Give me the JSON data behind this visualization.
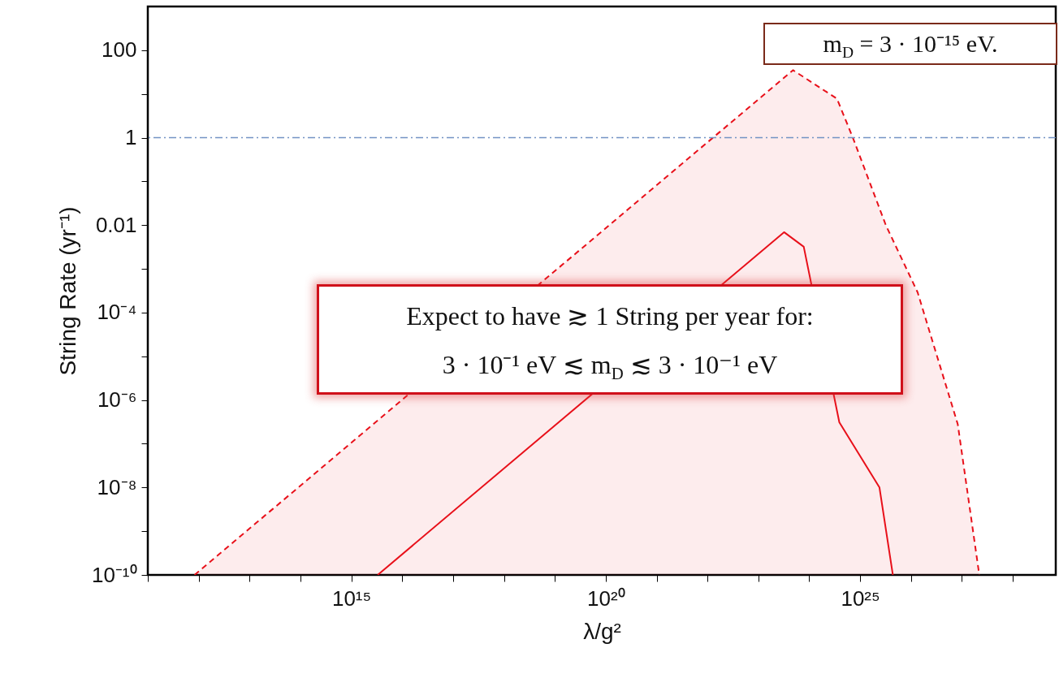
{
  "chart_data": {
    "type": "line",
    "xlabel": "λ/g²",
    "ylabel": "String Rate (yr⁻¹)",
    "log": "xy",
    "grid": false,
    "marker": "none",
    "xlim": [
      100000000000.0,
      7e+28
    ],
    "ylim": [
      1e-10,
      1000
    ],
    "xticks": [
      {
        "value": 100000000000.0,
        "label": null
      },
      {
        "value": 1000000000000.0,
        "label": null
      },
      {
        "value": 10000000000000.0,
        "label": null
      },
      {
        "value": 100000000000000.0,
        "label": null
      },
      {
        "value": 1000000000000000.0,
        "label": "10¹⁵"
      },
      {
        "value": 1e+16,
        "label": null
      },
      {
        "value": 1e+17,
        "label": null
      },
      {
        "value": 1e+18,
        "label": null
      },
      {
        "value": 1e+19,
        "label": null
      },
      {
        "value": 1e+20,
        "label": "10²⁰"
      },
      {
        "value": 1e+21,
        "label": null
      },
      {
        "value": 1e+22,
        "label": null
      },
      {
        "value": 1e+23,
        "label": null
      },
      {
        "value": 1e+24,
        "label": null
      },
      {
        "value": 1e+25,
        "label": "10²⁵"
      },
      {
        "value": 1e+26,
        "label": null
      },
      {
        "value": 1e+27,
        "label": null
      },
      {
        "value": 1e+28,
        "label": null
      }
    ],
    "yticks": [
      {
        "value": 1e-10,
        "label": "10⁻¹⁰"
      },
      {
        "value": 1e-09,
        "label": null
      },
      {
        "value": 1e-08,
        "label": "10⁻⁸"
      },
      {
        "value": 1e-07,
        "label": null
      },
      {
        "value": 1e-06,
        "label": "10⁻⁶"
      },
      {
        "value": 1e-05,
        "label": null
      },
      {
        "value": 0.0001,
        "label": "10⁻⁴"
      },
      {
        "value": 0.001,
        "label": null
      },
      0.01,
      {
        "value": 0.1,
        "label": null
      },
      1,
      {
        "value": 10,
        "label": null
      },
      100
    ],
    "series": [
      {
        "type": "area",
        "color": "#e8101a",
        "line_style": "dashed",
        "x": [
          830000000000.0,
          4.8e+23,
          3.5e+24,
          7.2e+24,
          3.2e+25,
          1.35e+26,
          8.3e+26,
          2.2e+27
        ],
        "values": [
          1e-10,
          35,
          7.8,
          1,
          0.01,
          0.00029,
          2.8e-07,
          1e-10
        ]
      },
      {
        "type": "line",
        "color": "#e8101a",
        "line_style": "solid",
        "x": [
          3300000000000000.0,
          3.2e+23,
          7.8e+23,
          3.9e+24,
          2.4e+25,
          4.4e+25
        ],
        "values": [
          1e-10,
          0.0069,
          0.0032,
          3.1e-07,
          1e-08,
          1e-10
        ]
      }
    ],
    "ref_lines": [
      {
        "axis": "y",
        "value": 1,
        "color": "#7393c4",
        "line_style": "dashdot"
      }
    ],
    "annotations": [
      "m$_{D}$ = 3 · 10⁻¹⁵ eV.",
      "Expect to have ≳ 1 String per year for:",
      "3 · 10⁻¹  eV ≲ m$_{D}$ ≲ 3 · 10⁻¹  eV"
    ]
  }
}
